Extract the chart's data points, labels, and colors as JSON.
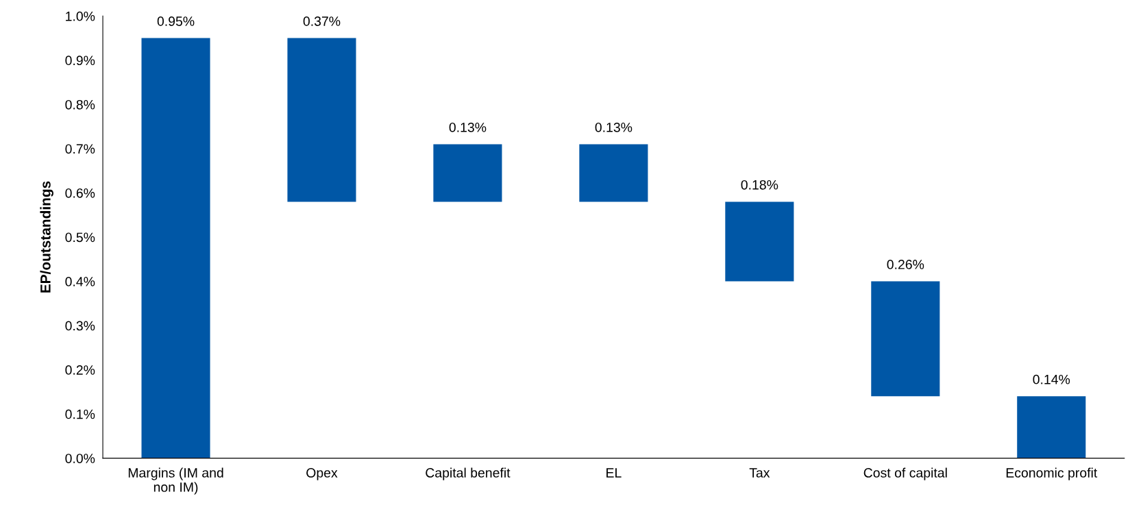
{
  "chart_data": {
    "type": "bar",
    "ylabel": "EP/outstandings",
    "categories": [
      "Margins (IM and\nnon IM)",
      "Opex",
      "Capital benefit",
      "EL",
      "Tax",
      "Cost of capital",
      "Economic profit"
    ],
    "values": [
      0.95,
      0.37,
      0.13,
      0.13,
      0.18,
      0.26,
      0.14
    ],
    "base": [
      0,
      0.58,
      0.58,
      0.58,
      0.4,
      0.14,
      0
    ],
    "value_labels": [
      "0.95%",
      "0.37%",
      "0.13%",
      "0.13%",
      "0.18%",
      "0.26%",
      "0.14%"
    ],
    "color": "#0057a6",
    "ylim": [
      0,
      1.0
    ],
    "yticks": [
      {
        "value": 0,
        "label": "0.0%"
      },
      {
        "value": 0.1,
        "label": "0.1%"
      },
      {
        "value": 0.2,
        "label": "0.2%"
      },
      {
        "value": 0.3,
        "label": "0.3%"
      },
      {
        "value": 0.4,
        "label": "0.4%"
      },
      {
        "value": 0.5,
        "label": "0.5%"
      },
      {
        "value": 0.6,
        "label": "0.6%"
      },
      {
        "value": 0.7,
        "label": "0.7%"
      },
      {
        "value": 0.8,
        "label": "0.8%"
      },
      {
        "value": 0.9,
        "label": "0.9%"
      },
      {
        "value": 1.0,
        "label": "1.0%"
      }
    ],
    "grid": false
  }
}
